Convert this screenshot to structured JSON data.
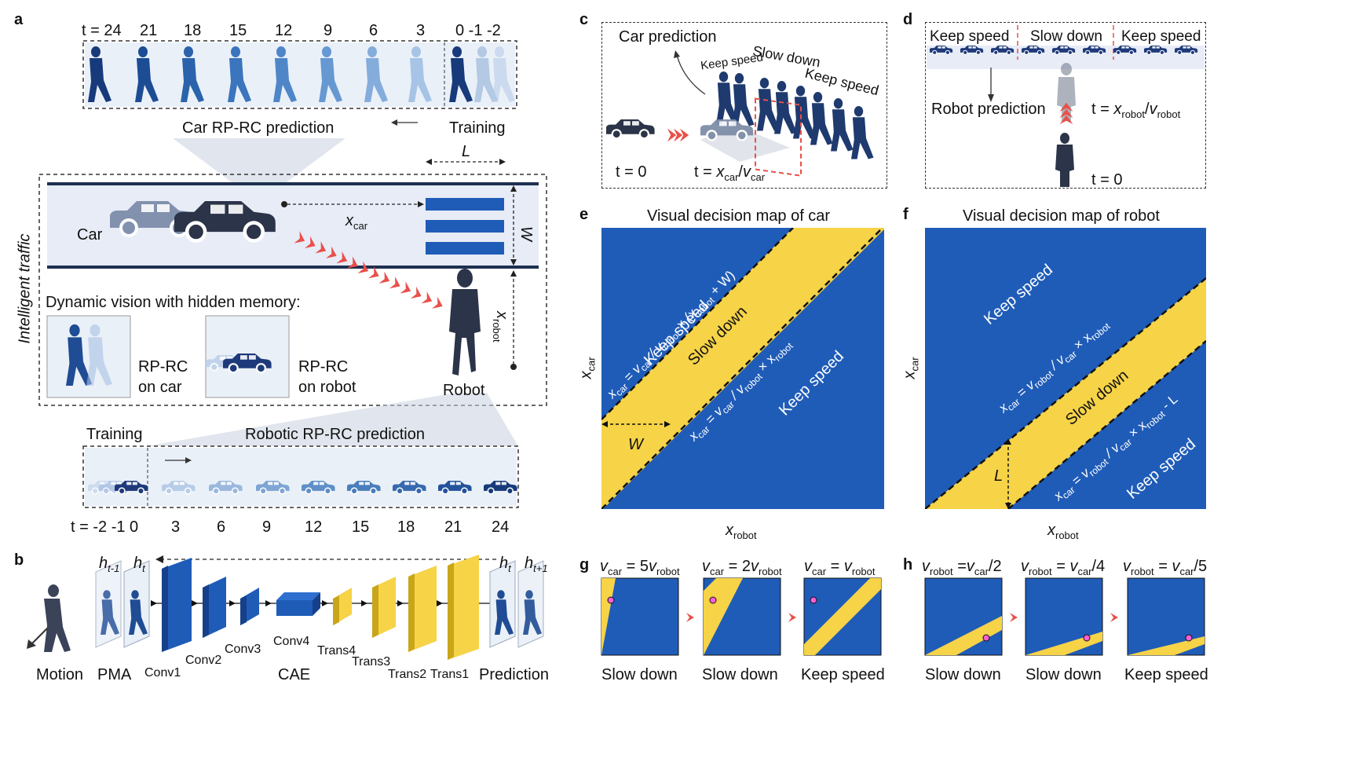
{
  "colors": {
    "blue": "#1f5cb8",
    "yellow": "#f6d347",
    "road": "#e7ecf7",
    "roadLine": "#1e3050",
    "dark": "#2b3448",
    "red": "#e8504a",
    "magenta": "#ff5fd6"
  },
  "panels": {
    "a": "a",
    "b": "b",
    "c": "c",
    "d": "d",
    "e": "e",
    "f": "f",
    "g": "g",
    "h": "h"
  },
  "a": {
    "top_times": [
      "t = 24",
      "21",
      "18",
      "15",
      "12",
      "9",
      "6",
      "3",
      "0 -1 -2"
    ],
    "car_pred": "Car RP-RC prediction",
    "training": "Training",
    "L": "L",
    "W": "W",
    "car": "Car",
    "xcar": "x",
    "xcar_sub": "car",
    "xrobot": "x",
    "xrobot_sub": "robot",
    "side": "Intelligent traffic",
    "dyn": "Dynamic vision with hidden memory:",
    "rp_car_1": "RP-RC",
    "rp_car_2": "on car",
    "rp_robot_1": "RP-RC",
    "rp_robot_2": "on robot",
    "robot": "Robot",
    "robot_training": "Training",
    "robot_pred": "Robotic RP-RC prediction",
    "bottom_times": [
      "t = -2 -1 0",
      "3",
      "6",
      "9",
      "12",
      "15",
      "18",
      "21",
      "24"
    ]
  },
  "b": {
    "h_prev": "h",
    "h_prev_sub": "t-1",
    "h_t": "h",
    "h_t_sub": "t",
    "h_t2": "h",
    "h_t2_sub": "t",
    "h_next": "h",
    "h_next_sub": "t+1",
    "layers": [
      "Conv1",
      "Conv2",
      "Conv3",
      "Conv4",
      "Trans4",
      "Trans3",
      "Trans2",
      "Trans1"
    ],
    "bottom": [
      "Motion",
      "PMA",
      "CAE",
      "Prediction"
    ]
  },
  "c": {
    "title": "Car prediction",
    "keep1": "Keep speed",
    "slow": "Slow down",
    "keep2": "Keep speed",
    "t0": "t = 0",
    "tx_a": "t = ",
    "tx_x": "x",
    "tx_xs": "car",
    "tx_slash": "/",
    "tx_v": "v",
    "tx_vs": "car"
  },
  "d": {
    "keep1": "Keep speed",
    "slow": "Slow down",
    "keep2": "Keep speed",
    "robot_pred": "Robot prediction",
    "tx_a": "t = ",
    "tx_x": "x",
    "tx_xs": "robot",
    "tx_slash": "/",
    "tx_v": "v",
    "tx_vs": "robot",
    "t0": "t = 0"
  },
  "e": {
    "title": "Visual decision map of car",
    "ylabel": "x",
    "ylabel_sub": "car",
    "xlabel": "x",
    "xlabel_sub": "robot",
    "keep_upper": "Keep speed",
    "slow": "Slow down",
    "keep_lower": "Keep speed",
    "eq_upper": "x_car = v_car / v_robot × (x_robot + W)",
    "eq_lower": "x_car = v_car / v_robot × x_robot",
    "W": "W"
  },
  "f": {
    "title": "Visual decision map of robot",
    "ylabel": "x",
    "ylabel_sub": "car",
    "xlabel": "x",
    "xlabel_sub": "robot",
    "keep_upper": "Keep speed",
    "slow": "Slow down",
    "keep_lower": "Keep speed",
    "eq_upper": "x_car = v_robot / v_car × x_robot",
    "eq_lower": "x_car = v_robot / v_car × x_robot - L",
    "L": "L"
  },
  "g": {
    "titles": [
      [
        "v",
        "car",
        " = 5",
        "v",
        "robot"
      ],
      [
        "v",
        "car",
        " = 2",
        "v",
        "robot"
      ],
      [
        "v",
        "car",
        " = ",
        "v",
        "robot"
      ]
    ],
    "labels": [
      "Slow down",
      "Slow down",
      "Keep speed"
    ]
  },
  "h": {
    "titles": [
      [
        "v",
        "robot",
        " =",
        "v",
        "car",
        "/2"
      ],
      [
        "v",
        "robot",
        " = ",
        "v",
        "car",
        "/4"
      ],
      [
        "v",
        "robot",
        " = ",
        "v",
        "car",
        "/5"
      ]
    ],
    "labels": [
      "Slow down",
      "Slow down",
      "Keep speed"
    ]
  }
}
